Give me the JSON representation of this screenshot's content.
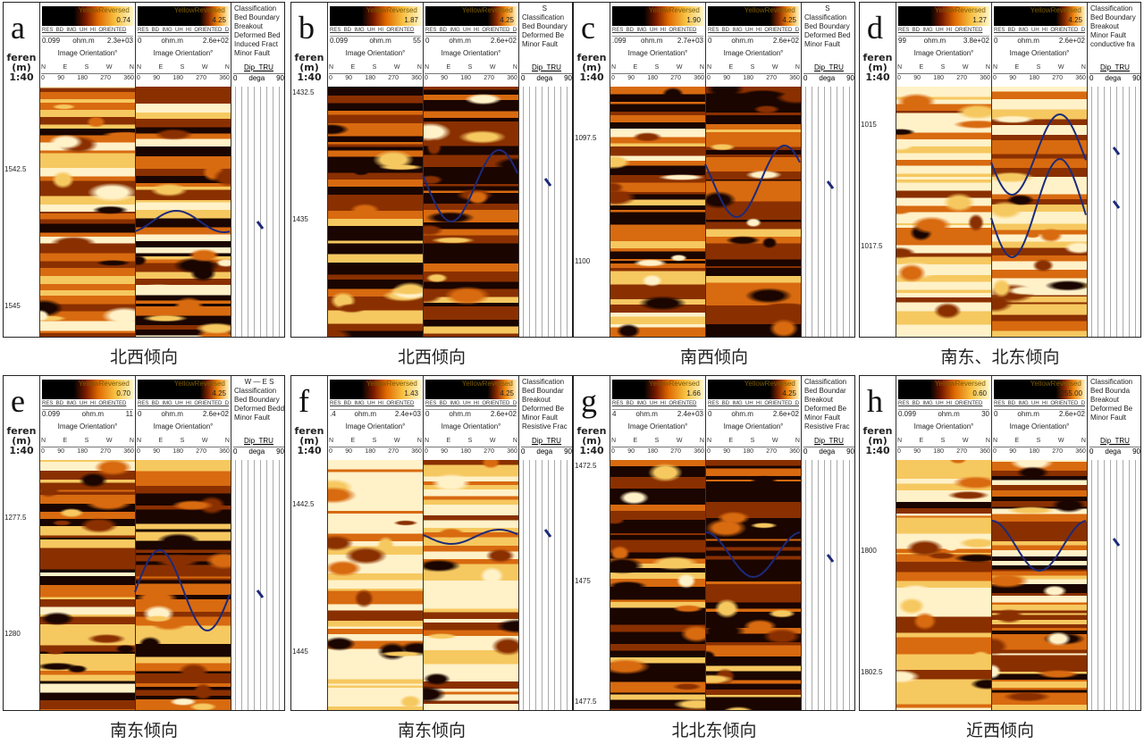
{
  "depth_header": [
    "feren",
    "(m)",
    "1:40"
  ],
  "colorbar_name": "YellowReversed",
  "track1_name": "RES_BD_IMG_UH_HI_ORIENTED",
  "track2_name": "RES_BD_IMG_UH_HI_ORIENTED_DYNAMIC",
  "orientation_label": "Image Orientation°",
  "directions": [
    "N",
    "E",
    "S",
    "W",
    "N"
  ],
  "degrees": [
    "0",
    "90",
    "180",
    "270",
    "360"
  ],
  "unit": "ohm.m",
  "dip_header": "Dip_TRU",
  "dip_scale": [
    "0",
    "dega",
    "90"
  ],
  "classification_label": "Classification",
  "colors": {
    "dark": "#1a0500",
    "mid": "#d86a10",
    "light": "#f6c860",
    "pale": "#fff1c8",
    "fault": "#1c2a7a",
    "bed": "#5aa040"
  },
  "panels": [
    {
      "letter": "a",
      "caption": "北西倾向",
      "cbar1_max": "0.74",
      "cbar2_max": "4.25",
      "t1_min": "0.099",
      "t1_max": "2.3e+03",
      "t2_min": "0",
      "t2_max": "2.6e+02",
      "compass": "",
      "legend": [
        "Bed Boundary",
        "Breakout",
        "Deformed Bed",
        "Induced Fract",
        "Minor Fault"
      ],
      "depths": [
        "1542.5",
        "1545"
      ]
    },
    {
      "letter": "b",
      "caption": "北西倾向",
      "cbar1_max": "1.87",
      "cbar2_max": "4.25",
      "t1_min": "0.099",
      "t1_max": "55",
      "t2_min": "0",
      "t2_max": "2.6e+02",
      "compass": "S",
      "legend": [
        "Bed Boundary",
        "Deformed Be",
        "Minor Fault"
      ],
      "depths": [
        "1432.5",
        "1435"
      ]
    },
    {
      "letter": "c",
      "caption": "南西倾向",
      "cbar1_max": "1.90",
      "cbar2_max": "4.25",
      "t1_min": ".099",
      "t1_max": "2.7e+03",
      "t2_min": "0",
      "t2_max": "2.6e+02",
      "compass": "S",
      "legend": [
        "Bed Boundary",
        "Deformed Bed",
        "Minor Fault"
      ],
      "depths": [
        "1097.5",
        "1100"
      ]
    },
    {
      "letter": "d",
      "caption": "南东、北东倾向",
      "cbar1_max": "1.27",
      "cbar2_max": "4.25",
      "t1_min": "99",
      "t1_max": "3.8e+02",
      "t2_min": "0",
      "t2_max": "2.6e+02",
      "compass": "",
      "legend": [
        "Bed Boundary",
        "Breakout",
        "Minor Fault",
        "conductive fra"
      ],
      "depths": [
        "1015",
        "1017.5"
      ]
    },
    {
      "letter": "e",
      "caption": "南东倾向",
      "cbar1_max": "0.70",
      "cbar2_max": "4.25",
      "t1_min": "0.099",
      "t1_max": "11",
      "t2_min": "0",
      "t2_max": "2.6e+02",
      "compass": "W — E  S",
      "legend": [
        "Bed Boundary",
        "Deformed Bedd",
        "Minor Fault"
      ],
      "depths": [
        "1277.5",
        "1280"
      ]
    },
    {
      "letter": "f",
      "caption": "南东倾向",
      "cbar1_max": "1.43",
      "cbar2_max": "4.25",
      "t1_min": ".4",
      "t1_max": "2.4e+03",
      "t2_min": "0",
      "t2_max": "2.6e+02",
      "compass": "",
      "legend": [
        "Bed Boundar",
        "Breakout",
        "Deformed Be",
        "Minor Fault",
        "Resistive Frac"
      ],
      "depths": [
        "1442.5",
        "1445"
      ]
    },
    {
      "letter": "g",
      "caption": "北北东倾向",
      "cbar1_max": "1.66",
      "cbar2_max": "4.25",
      "t1_min": "4",
      "t1_max": "2.4e+03",
      "t2_min": "0",
      "t2_max": "2.6e+02",
      "compass": "",
      "legend": [
        "Bed Boundar",
        "Breakout",
        "Deformed Be",
        "Minor Fault",
        "Resistive Frac"
      ],
      "depths": [
        "1472.5",
        "1475",
        "1477.5"
      ]
    },
    {
      "letter": "h",
      "caption": "近西倾向",
      "cbar1_max": "0.60",
      "cbar2_max": "255.00",
      "t1_min": "0.099",
      "t1_max": "30",
      "t2_min": "0",
      "t2_max": "2.6e+02",
      "compass": "",
      "legend": [
        "Bed Bounda",
        "Breakout",
        "Deformed Be",
        "Minor Fault"
      ],
      "depths": [
        "1800",
        "1802.5"
      ]
    }
  ]
}
